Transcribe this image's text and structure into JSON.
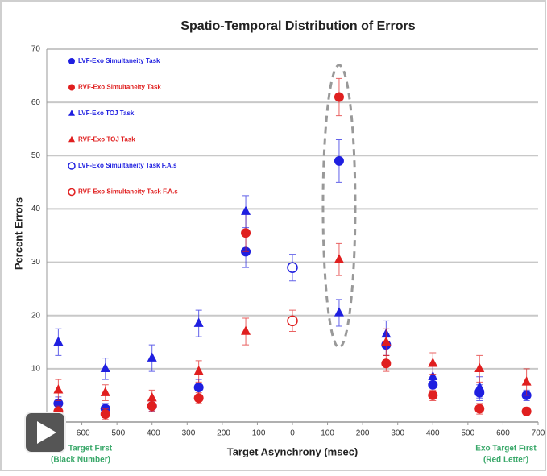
{
  "chart_data": {
    "type": "scatter",
    "title": "Spatio-Temporal Distribution of Errors",
    "xlabel": "Target Asynchrony (msec)",
    "ylabel": "Percent Errors",
    "x": [
      -667,
      -533,
      -400,
      -267,
      -133,
      0,
      133,
      267,
      400,
      533,
      667
    ],
    "xlim": [
      -700,
      700
    ],
    "xticks": [
      -700,
      -600,
      -500,
      -400,
      -300,
      -200,
      -100,
      0,
      100,
      200,
      300,
      400,
      500,
      600,
      700
    ],
    "ylim": [
      0,
      70
    ],
    "yticks": [
      0,
      10,
      20,
      30,
      40,
      50,
      60,
      70
    ],
    "grid": true,
    "legend": "upper left",
    "series": [
      {
        "name": "LVF-Exo Simultaneity Task",
        "color": "#1f1fe0",
        "marker": "circle",
        "values": [
          3.5,
          2.5,
          3,
          6.5,
          32,
          null,
          49,
          14.5,
          7,
          5.5,
          5
        ],
        "errors": [
          1.2,
          1,
          1,
          1.5,
          3,
          null,
          4,
          2,
          1.5,
          1.5,
          1
        ]
      },
      {
        "name": "RVF-Exo Simultaneity Task",
        "color": "#e01f1f",
        "marker": "circle",
        "values": [
          2,
          1.5,
          3,
          4.5,
          35.5,
          null,
          61,
          11,
          5,
          2.5,
          2
        ],
        "errors": [
          1,
          1,
          1,
          1,
          3.5,
          null,
          3.5,
          1.5,
          1,
          1,
          0.8
        ]
      },
      {
        "name": "LVF-Exo TOJ Task",
        "color": "#1f1fe0",
        "marker": "triangle",
        "values": [
          15,
          10,
          12,
          18.5,
          39.5,
          null,
          20.5,
          16.5,
          8.5,
          6.5,
          null
        ],
        "errors": [
          2.5,
          2,
          2.5,
          2.5,
          3,
          null,
          2.5,
          2.5,
          2,
          2,
          null
        ]
      },
      {
        "name": "RVF-Exo TOJ Task",
        "color": "#e01f1f",
        "marker": "triangle",
        "values": [
          6,
          5.5,
          4.5,
          9.5,
          17,
          null,
          30.5,
          15,
          11,
          10,
          7.5
        ],
        "errors": [
          2,
          1.5,
          1.5,
          2,
          2.5,
          null,
          3,
          2.5,
          2,
          2.5,
          2.5
        ]
      },
      {
        "name": "LVF-Exo Simultaneity Task F.A.s",
        "color": "#1f1fe0",
        "marker": "open",
        "values": [
          null,
          null,
          null,
          null,
          null,
          29,
          null,
          null,
          null,
          null,
          null
        ],
        "errors": [
          null,
          null,
          null,
          null,
          null,
          2.5,
          null,
          null,
          null,
          null,
          null
        ]
      },
      {
        "name": "RVF-Exo Simultaneity Task F.A.s",
        "color": "#e01f1f",
        "marker": "open",
        "values": [
          null,
          null,
          null,
          null,
          null,
          19,
          null,
          null,
          null,
          null,
          null
        ],
        "errors": [
          null,
          null,
          null,
          null,
          null,
          2,
          null,
          null,
          null,
          null,
          null
        ]
      }
    ],
    "annotations": [
      "Target First",
      "(Black Number)",
      "Exo Target First",
      "(Red Letter)"
    ]
  }
}
